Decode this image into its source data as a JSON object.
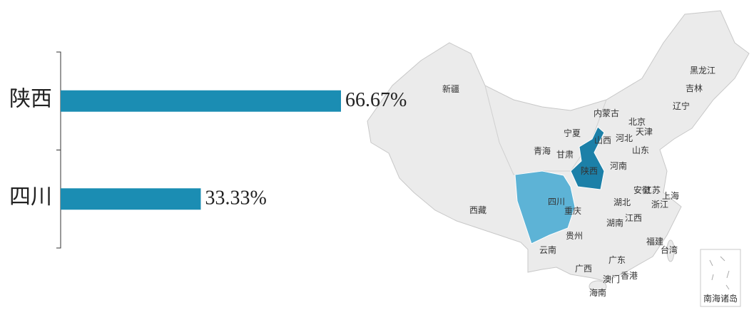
{
  "chart_data": [
    {
      "type": "bar",
      "orientation": "horizontal",
      "categories": [
        "陕西",
        "四川"
      ],
      "values": [
        66.67,
        33.33
      ],
      "value_labels": [
        "66.67%",
        "33.33%"
      ],
      "color": "#1b8db3"
    },
    {
      "type": "map",
      "labels": [
        "新疆",
        "西藏",
        "青海",
        "甘肃",
        "宁夏",
        "内蒙古",
        "黑龙江",
        "吉林",
        "辽宁",
        "北京",
        "天津",
        "山西",
        "河北",
        "山东",
        "河南",
        "陕西",
        "四川",
        "重庆",
        "湖北",
        "安徽",
        "江苏",
        "上海",
        "浙江",
        "湖南",
        "江西",
        "贵州",
        "云南",
        "广西",
        "广东",
        "福建",
        "台湾",
        "澳门",
        "香港",
        "海南",
        "南海诸岛"
      ],
      "base_color": "#ebebeb",
      "colors": [
        "#1c80a8",
        "#5db3d6"
      ]
    }
  ]
}
